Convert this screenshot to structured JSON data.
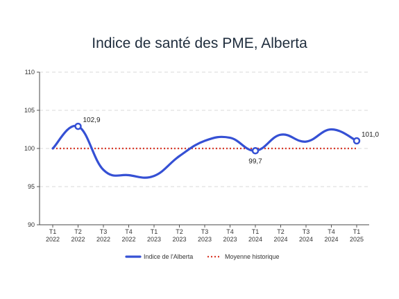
{
  "chart_data": {
    "type": "line",
    "title": "Indice de santé des PME, Alberta",
    "xlabel": "",
    "ylabel": "",
    "ylim": [
      90,
      110
    ],
    "yticks": [
      90,
      95,
      100,
      105,
      110
    ],
    "grid": true,
    "legend_position": "bottom",
    "categories": [
      {
        "q": "T1",
        "year": "2022"
      },
      {
        "q": "T2",
        "year": "2022"
      },
      {
        "q": "T3",
        "year": "2022"
      },
      {
        "q": "T4",
        "year": "2022"
      },
      {
        "q": "T1",
        "year": "2023"
      },
      {
        "q": "T2",
        "year": "2023"
      },
      {
        "q": "T3",
        "year": "2023"
      },
      {
        "q": "T4",
        "year": "2023"
      },
      {
        "q": "T1",
        "year": "2024"
      },
      {
        "q": "T2",
        "year": "2024"
      },
      {
        "q": "T3",
        "year": "2024"
      },
      {
        "q": "T4",
        "year": "2024"
      },
      {
        "q": "T1",
        "year": "2025"
      }
    ],
    "series": [
      {
        "name": "Indice de l'Alberta",
        "color": "#3550d4",
        "style": "solid-smooth",
        "values": [
          100.0,
          102.9,
          97.2,
          96.5,
          96.4,
          99.0,
          101.0,
          101.4,
          99.7,
          101.8,
          100.9,
          102.5,
          101.0
        ]
      },
      {
        "name": "Moyenne historique",
        "color": "#d93a2b",
        "style": "dotted",
        "values": [
          100,
          100,
          100,
          100,
          100,
          100,
          100,
          100,
          100,
          100,
          100,
          100,
          100
        ]
      }
    ],
    "annotations": [
      {
        "index": 1,
        "label": "102,9",
        "placement": "right"
      },
      {
        "index": 8,
        "label": "99,7",
        "placement": "below"
      },
      {
        "index": 12,
        "label": "101,0",
        "placement": "right"
      }
    ]
  }
}
